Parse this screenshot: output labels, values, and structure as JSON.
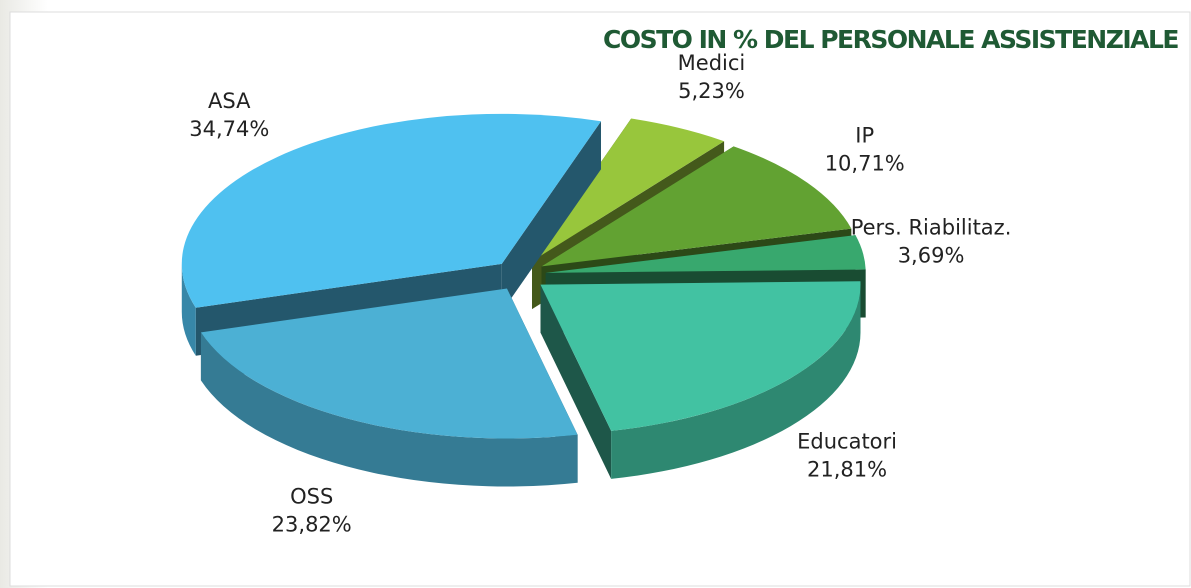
{
  "chart_data": {
    "type": "pie3d",
    "title": "COSTO IN % DEL PERSONALE ASSISTENZIALE",
    "categories": [
      "ASA",
      "Medici",
      "IP",
      "Pers. Riabilitaz.",
      "Educatori",
      "OSS"
    ],
    "values": [
      34.74,
      5.23,
      10.71,
      3.69,
      21.81,
      23.82
    ],
    "value_labels": [
      "34,74%",
      "5,23%",
      "10,71%",
      "3,69%",
      "21,81%",
      "23,82%"
    ],
    "colors": [
      "#4fc1f0",
      "#98c63c",
      "#62a232",
      "#38a86e",
      "#42c2a2",
      "#4cb0d4"
    ]
  }
}
